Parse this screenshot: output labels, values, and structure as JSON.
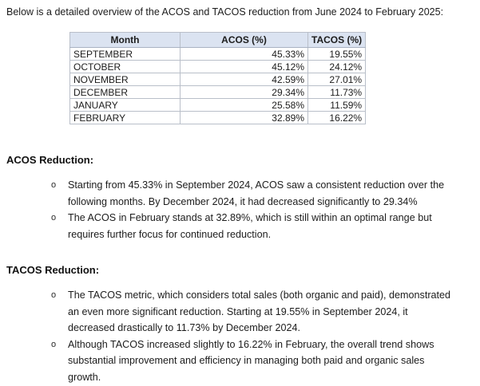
{
  "intro": "Below is a detailed overview of the ACOS and TACOS reduction from June 2024 to February 2025:",
  "table": {
    "headers": [
      "Month",
      "ACOS (%)",
      "TACOS (%)"
    ],
    "rows": [
      {
        "month": "SEPTEMBER",
        "acos": "45.33%",
        "tacos": "19.55%"
      },
      {
        "month": "OCTOBER",
        "acos": "45.12%",
        "tacos": "24.12%"
      },
      {
        "month": "NOVEMBER",
        "acos": "42.59%",
        "tacos": "27.01%"
      },
      {
        "month": "DECEMBER",
        "acos": "29.34%",
        "tacos": "11.73%"
      },
      {
        "month": "JANUARY",
        "acos": "25.58%",
        "tacos": "11.59%"
      },
      {
        "month": "FEBRUARY",
        "acos": "32.89%",
        "tacos": "16.22%"
      }
    ],
    "header_bg": "#dbe3f1",
    "border_color": "#b9bfc9"
  },
  "bullet_glyph": "o",
  "sections": [
    {
      "heading": "ACOS Reduction:",
      "bullets": [
        "Starting from 45.33% in September 2024, ACOS saw a consistent reduction over the following months. By December 2024, it had decreased significantly to 29.34%",
        "The ACOS in February stands at 32.89%, which is still within an optimal range but requires further focus for continued reduction."
      ]
    },
    {
      "heading": "TACOS Reduction:",
      "bullets": [
        "The TACOS metric, which considers total sales (both organic and paid), demonstrated an even more significant reduction. Starting at 19.55% in September 2024, it decreased drastically to 11.73% by December 2024.",
        "Although TACOS increased slightly to 16.22% in February, the overall trend shows substantial improvement and efficiency in managing both paid and organic sales growth."
      ]
    }
  ],
  "colors": {
    "text": "#1c1c1c",
    "background": "#ffffff"
  }
}
